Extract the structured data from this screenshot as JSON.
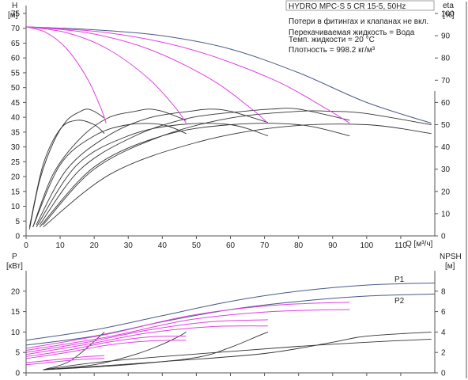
{
  "chart_data": [
    {
      "type": "line",
      "panel": "head-efficiency",
      "title": "HYDRO MPC-S 5 CR 15-5, 50Hz",
      "annotations": [
        "Потери в фитингах и клапанах не вкл.",
        "Перекачиваемая жидкость = Вода",
        "Темп. жидкости = 20 °C",
        "Плотность = 998.2 кг/м³"
      ],
      "ylabel_left": "H",
      "ylabel_left_unit": "[м]",
      "ylabel_right": "eta",
      "ylabel_right_unit": "[%]",
      "xlabel": "Q [м³/ч]",
      "xlim": [
        0,
        120
      ],
      "ylim_left": [
        0,
        75
      ],
      "ylim_right": [
        0,
        100
      ],
      "x_ticks": [
        "0",
        "10",
        "20",
        "30",
        "40",
        "50",
        "60",
        "70",
        "80",
        "90",
        "100",
        "110"
      ],
      "y_ticks_left": [
        "0",
        "5",
        "10",
        "15",
        "20",
        "25",
        "30",
        "35",
        "40",
        "45",
        "50",
        "55",
        "60",
        "65",
        "70",
        "75"
      ],
      "y_ticks_right": [
        "0",
        "10",
        "20",
        "30",
        "40",
        "50",
        "60",
        "70",
        "80",
        "90",
        "100"
      ],
      "grid": false,
      "colors": {
        "system": "#4a5a85",
        "reduced_speed": "#e040e0",
        "efficiency": "#333333",
        "axis": "#555555"
      },
      "head_curves": [
        {
          "kind": "system",
          "points": [
            [
              0,
              70.5
            ],
            [
              20,
              69.5
            ],
            [
              40,
              67.5
            ],
            [
              60,
              63
            ],
            [
              80,
              55
            ],
            [
              100,
              45
            ],
            [
              119,
              38
            ]
          ]
        },
        {
          "kind": "reduced_speed",
          "points": [
            [
              0,
              70.5
            ],
            [
              6,
              68.5
            ],
            [
              12,
              63
            ],
            [
              18,
              53
            ],
            [
              22,
              43
            ],
            [
              23.5,
              38
            ]
          ]
        },
        {
          "kind": "reduced_speed",
          "points": [
            [
              0,
              70.5
            ],
            [
              12,
              68.5
            ],
            [
              24,
              63
            ],
            [
              36,
              53
            ],
            [
              44,
              43
            ],
            [
              47,
              38
            ]
          ]
        },
        {
          "kind": "reduced_speed",
          "points": [
            [
              0,
              70.5
            ],
            [
              18,
              68.5
            ],
            [
              36,
              63
            ],
            [
              54,
              53
            ],
            [
              66,
              43
            ],
            [
              71,
              38
            ]
          ]
        },
        {
          "kind": "reduced_speed",
          "points": [
            [
              0,
              70.5
            ],
            [
              24,
              68.5
            ],
            [
              48,
              63
            ],
            [
              72,
              53
            ],
            [
              88,
              43
            ],
            [
              95,
              38
            ]
          ]
        }
      ],
      "eta_curves": [
        {
          "points": [
            [
              1,
              3
            ],
            [
              4,
              25
            ],
            [
              8,
              42
            ],
            [
              12,
              52
            ],
            [
              16,
              56
            ],
            [
              18,
              57
            ],
            [
              20,
              56
            ],
            [
              23,
              53
            ]
          ]
        },
        {
          "points": [
            [
              2,
              4
            ],
            [
              8,
              28
            ],
            [
              16,
              44
            ],
            [
              24,
              53
            ],
            [
              32,
              56
            ],
            [
              36,
              57
            ],
            [
              40,
              56
            ],
            [
              47,
              52
            ]
          ]
        },
        {
          "points": [
            [
              3,
              5
            ],
            [
              12,
              30
            ],
            [
              24,
              45
            ],
            [
              36,
              53
            ],
            [
              48,
              56
            ],
            [
              54,
              57
            ],
            [
              60,
              56
            ],
            [
              71,
              51
            ]
          ]
        },
        {
          "points": [
            [
              4,
              5
            ],
            [
              16,
              30
            ],
            [
              32,
              45
            ],
            [
              48,
              53
            ],
            [
              64,
              56
            ],
            [
              72,
              57
            ],
            [
              80,
              57
            ],
            [
              95,
              52
            ]
          ]
        },
        {
          "points": [
            [
              5,
              5
            ],
            [
              20,
              30
            ],
            [
              40,
              45
            ],
            [
              60,
              53
            ],
            [
              80,
              56
            ],
            [
              90,
              56
            ],
            [
              100,
              55
            ],
            [
              119,
              50
            ]
          ]
        },
        {
          "points": [
            [
              1,
              4
            ],
            [
              5,
              32
            ],
            [
              10,
              48
            ],
            [
              15,
              52
            ],
            [
              20,
              50
            ],
            [
              23,
              46
            ]
          ]
        },
        {
          "points": [
            [
              2,
              4
            ],
            [
              10,
              32
            ],
            [
              20,
              45
            ],
            [
              30,
              50
            ],
            [
              40,
              50
            ],
            [
              47,
              46
            ]
          ]
        },
        {
          "points": [
            [
              3,
              4
            ],
            [
              15,
              32
            ],
            [
              30,
              45
            ],
            [
              45,
              50
            ],
            [
              60,
              50
            ],
            [
              71,
              45
            ]
          ]
        },
        {
          "points": [
            [
              4,
              4
            ],
            [
              20,
              31
            ],
            [
              40,
              45
            ],
            [
              60,
              50
            ],
            [
              80,
              50
            ],
            [
              95,
              45
            ]
          ]
        },
        {
          "points": [
            [
              5,
              4
            ],
            [
              25,
              28
            ],
            [
              50,
              42
            ],
            [
              75,
              49
            ],
            [
              100,
              50
            ],
            [
              119,
              46
            ]
          ]
        }
      ]
    },
    {
      "type": "line",
      "panel": "power-npsh",
      "ylabel_left": "P",
      "ylabel_left_unit": "[кВт]",
      "ylabel_right": "NPSH",
      "ylabel_right_unit": "[м]",
      "xlim": [
        0,
        120
      ],
      "ylim_left": [
        0,
        25
      ],
      "ylim_right": [
        0,
        10
      ],
      "y_ticks_left": [
        "0",
        "5",
        "10",
        "15",
        "20"
      ],
      "y_ticks_right": [
        "0",
        "2",
        "4",
        "6",
        "8"
      ],
      "series_labels": [
        "P1",
        "P2"
      ],
      "power_curves": [
        {
          "name": "P1",
          "kind": "system",
          "points": [
            [
              0,
              8
            ],
            [
              20,
              10.5
            ],
            [
              40,
              14
            ],
            [
              60,
              17.5
            ],
            [
              80,
              20
            ],
            [
              100,
              21.5
            ],
            [
              120,
              22
            ]
          ]
        },
        {
          "name": "P2",
          "kind": "system",
          "points": [
            [
              0,
              6.8
            ],
            [
              20,
              9
            ],
            [
              40,
              12.5
            ],
            [
              60,
              15.5
            ],
            [
              80,
              17.5
            ],
            [
              100,
              18.8
            ],
            [
              120,
              19.3
            ]
          ]
        },
        {
          "kind": "reduced_speed",
          "points": [
            [
              0,
              6
            ],
            [
              24,
              9.5
            ],
            [
              48,
              14
            ],
            [
              72,
              16.5
            ],
            [
              95,
              17.3
            ]
          ]
        },
        {
          "kind": "reduced_speed",
          "points": [
            [
              0,
              5.5
            ],
            [
              24,
              8.8
            ],
            [
              48,
              13
            ],
            [
              72,
              15
            ],
            [
              95,
              15.5
            ]
          ]
        },
        {
          "kind": "reduced_speed",
          "points": [
            [
              0,
              5
            ],
            [
              18,
              7.5
            ],
            [
              36,
              10.5
            ],
            [
              54,
              12.5
            ],
            [
              71,
              13
            ]
          ]
        },
        {
          "kind": "reduced_speed",
          "points": [
            [
              0,
              4.5
            ],
            [
              18,
              7
            ],
            [
              36,
              9.8
            ],
            [
              54,
              11.3
            ],
            [
              71,
              11.5
            ]
          ]
        },
        {
          "kind": "reduced_speed",
          "points": [
            [
              0,
              4
            ],
            [
              12,
              5.5
            ],
            [
              24,
              7.5
            ],
            [
              36,
              8.8
            ],
            [
              47,
              9
            ]
          ]
        },
        {
          "kind": "reduced_speed",
          "points": [
            [
              0,
              3.5
            ],
            [
              12,
              5
            ],
            [
              24,
              6.8
            ],
            [
              36,
              7.8
            ],
            [
              47,
              8
            ]
          ]
        },
        {
          "kind": "reduced_speed",
          "points": [
            [
              0,
              2.5
            ],
            [
              6,
              3
            ],
            [
              12,
              3.5
            ],
            [
              18,
              4
            ],
            [
              23,
              4.2
            ]
          ]
        },
        {
          "kind": "reduced_speed",
          "points": [
            [
              0,
              2
            ],
            [
              6,
              2.5
            ],
            [
              12,
              3
            ],
            [
              18,
              3.4
            ],
            [
              23,
              3.5
            ]
          ]
        }
      ],
      "npsh_curves": [
        {
          "points": [
            [
              5,
              0.3
            ],
            [
              20,
              1
            ],
            [
              40,
              1.6
            ],
            [
              60,
              2.1
            ],
            [
              80,
              2.6
            ],
            [
              100,
              3
            ],
            [
              119,
              3.3
            ]
          ]
        },
        {
          "points": [
            [
              5,
              0.3
            ],
            [
              40,
              1.1
            ],
            [
              70,
              1.9
            ],
            [
              90,
              3
            ],
            [
              100,
              3.6
            ],
            [
              119,
              4
            ]
          ]
        },
        {
          "points": [
            [
              5,
              0.3
            ],
            [
              30,
              0.8
            ],
            [
              50,
              1.5
            ],
            [
              60,
              2.5
            ],
            [
              68,
              3.6
            ],
            [
              71,
              4
            ]
          ]
        },
        {
          "points": [
            [
              5,
              0.3
            ],
            [
              20,
              0.8
            ],
            [
              32,
              1.8
            ],
            [
              40,
              2.8
            ],
            [
              45,
              3.6
            ],
            [
              47,
              4
            ]
          ]
        },
        {
          "points": [
            [
              5,
              0.3
            ],
            [
              12,
              1
            ],
            [
              17,
              2.2
            ],
            [
              21,
              3.4
            ],
            [
              23,
              4
            ]
          ]
        }
      ]
    }
  ]
}
